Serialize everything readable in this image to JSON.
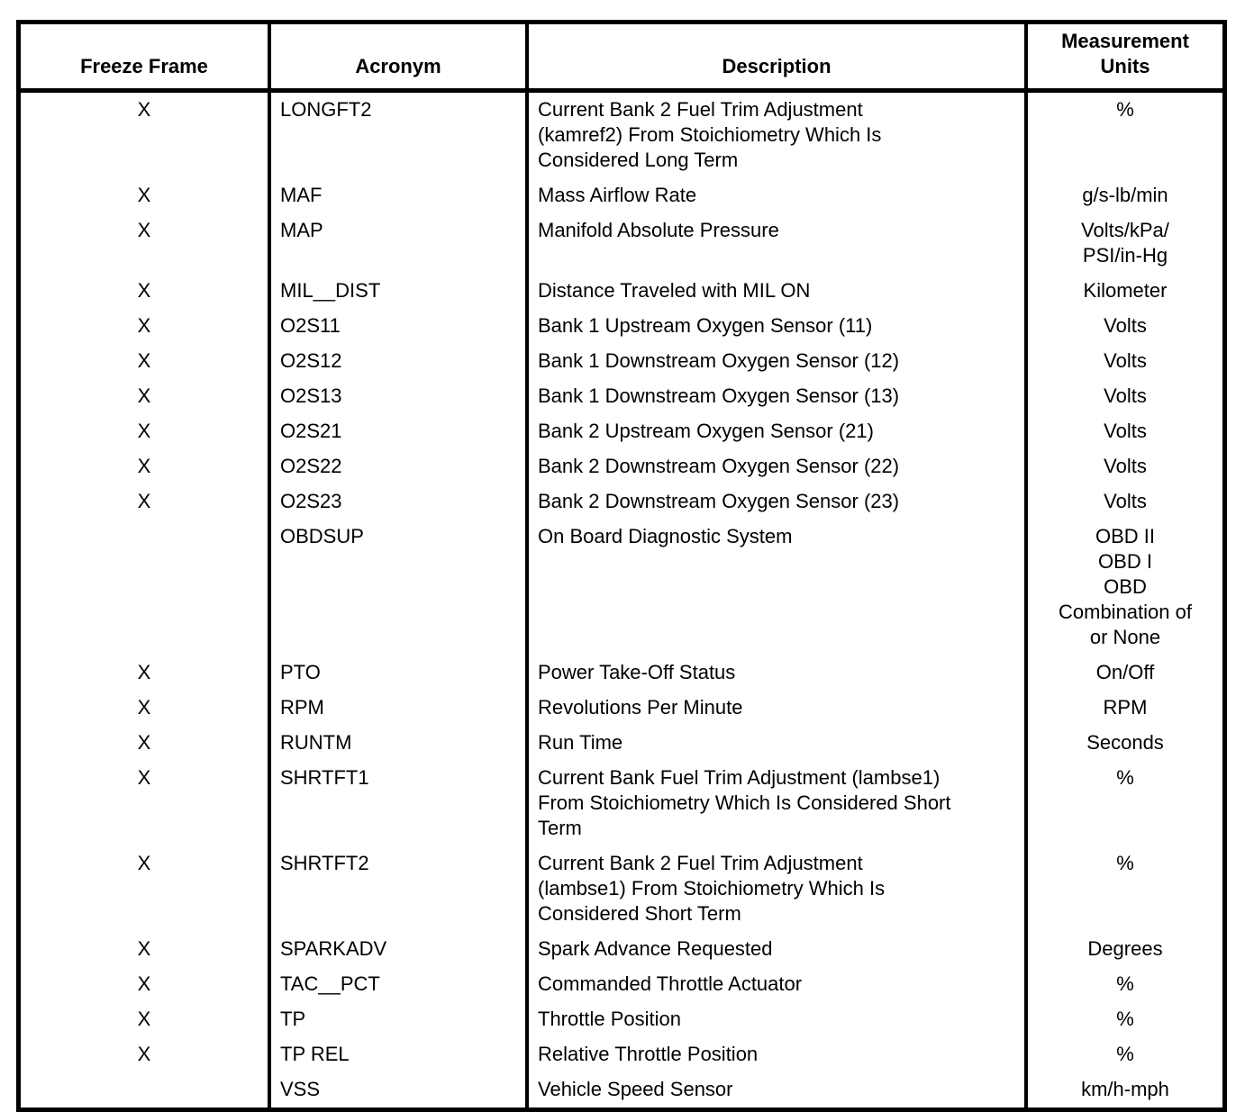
{
  "table": {
    "headers": [
      "Freeze Frame",
      "Acronym",
      "Description",
      "Measurement\nUnits"
    ],
    "rows": [
      {
        "freeze_frame": "X",
        "acronym": "LONGFT2",
        "description": "Current Bank 2 Fuel Trim Adjustment\n(kamref2) From Stoichiometry Which Is\nConsidered Long Term",
        "units": "%"
      },
      {
        "freeze_frame": "X",
        "acronym": "MAF",
        "description": "Mass Airflow Rate",
        "units": "g/s-lb/min"
      },
      {
        "freeze_frame": "X",
        "acronym": "MAP",
        "description": "Manifold Absolute Pressure",
        "units": "Volts/kPa/\nPSI/in-Hg"
      },
      {
        "freeze_frame": "X",
        "acronym": "MIL__DIST",
        "description": "Distance Traveled with MIL ON",
        "units": "Kilometer"
      },
      {
        "freeze_frame": "X",
        "acronym": "O2S11",
        "description": "Bank 1 Upstream Oxygen Sensor (11)",
        "units": "Volts"
      },
      {
        "freeze_frame": "X",
        "acronym": "O2S12",
        "description": "Bank 1 Downstream Oxygen Sensor (12)",
        "units": "Volts"
      },
      {
        "freeze_frame": "X",
        "acronym": "O2S13",
        "description": "Bank 1 Downstream Oxygen Sensor (13)",
        "units": "Volts"
      },
      {
        "freeze_frame": "X",
        "acronym": "O2S21",
        "description": "Bank 2 Upstream Oxygen Sensor (21)",
        "units": "Volts"
      },
      {
        "freeze_frame": "X",
        "acronym": "O2S22",
        "description": "Bank 2 Downstream Oxygen Sensor (22)",
        "units": "Volts"
      },
      {
        "freeze_frame": "X",
        "acronym": "O2S23",
        "description": "Bank 2 Downstream Oxygen Sensor (23)",
        "units": "Volts"
      },
      {
        "freeze_frame": "",
        "acronym": "OBDSUP",
        "description": "On Board Diagnostic System",
        "units": "OBD II\nOBD I\nOBD\nCombination of\nor None"
      },
      {
        "freeze_frame": "X",
        "acronym": "PTO",
        "description": "Power Take-Off Status",
        "units": "On/Off"
      },
      {
        "freeze_frame": "X",
        "acronym": "RPM",
        "description": "Revolutions Per Minute",
        "units": "RPM"
      },
      {
        "freeze_frame": "X",
        "acronym": "RUNTM",
        "description": "Run Time",
        "units": "Seconds"
      },
      {
        "freeze_frame": "X",
        "acronym": "SHRTFT1",
        "description": "Current Bank Fuel Trim Adjustment (lambse1)\nFrom Stoichiometry Which Is Considered Short\nTerm",
        "units": "%"
      },
      {
        "freeze_frame": "X",
        "acronym": "SHRTFT2",
        "description": "Current Bank 2 Fuel Trim Adjustment\n(lambse1) From Stoichiometry Which Is\nConsidered Short Term",
        "units": "%"
      },
      {
        "freeze_frame": "X",
        "acronym": "SPARKADV",
        "description": "Spark Advance Requested",
        "units": "Degrees"
      },
      {
        "freeze_frame": "X",
        "acronym": "TAC__PCT",
        "description": "Commanded Throttle Actuator",
        "units": "%"
      },
      {
        "freeze_frame": "X",
        "acronym": "TP",
        "description": "Throttle Position",
        "units": "%"
      },
      {
        "freeze_frame": "X",
        "acronym": "TP REL",
        "description": "Relative Throttle Position",
        "units": "%"
      },
      {
        "freeze_frame": "",
        "acronym": "VSS",
        "description": "Vehicle Speed Sensor",
        "units": "km/h-mph"
      }
    ]
  }
}
